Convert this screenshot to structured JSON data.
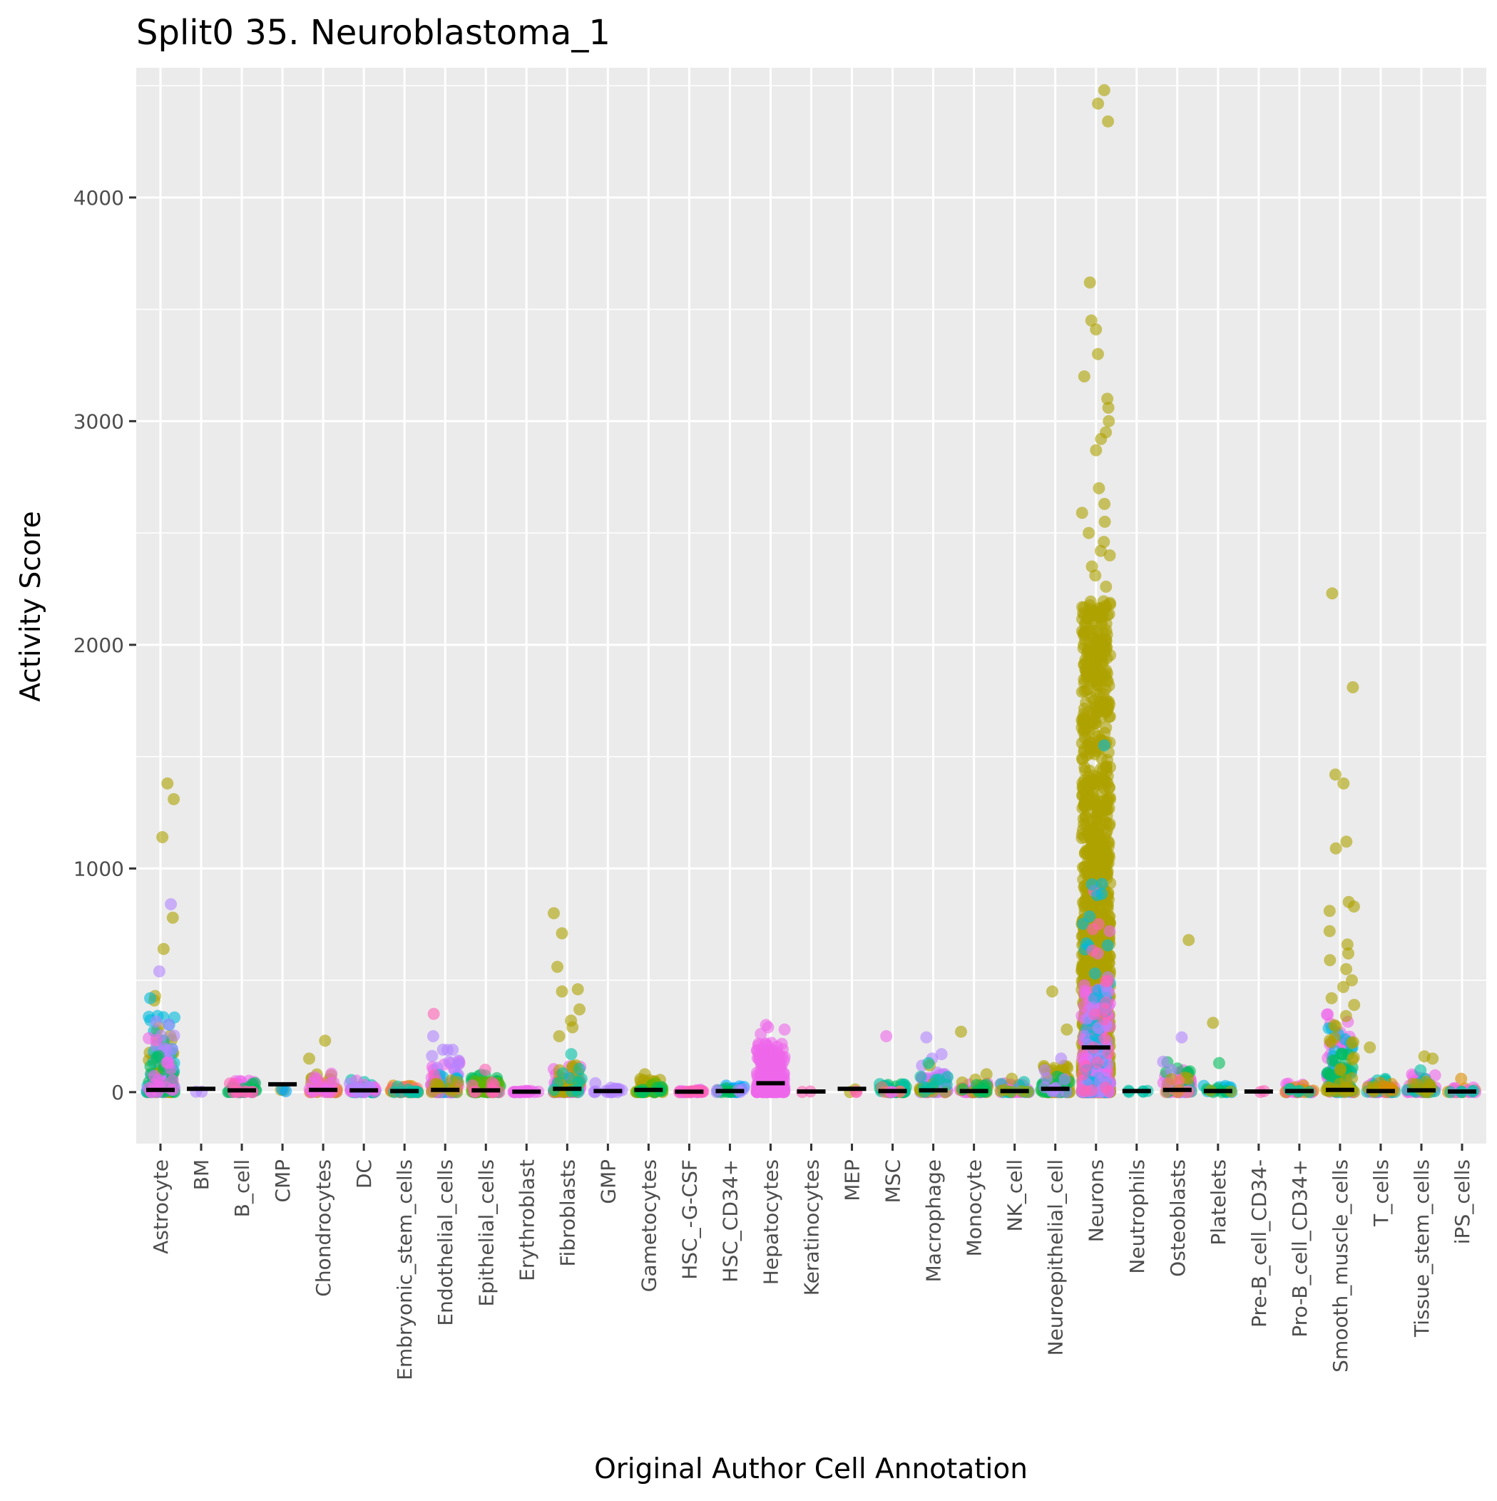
{
  "chart_data": {
    "type": "scatter",
    "title": "Split0 35. Neuroblastoma_1",
    "xlabel": "Original Author Cell Annotation",
    "ylabel": "Activity Score",
    "ylim": [
      -230,
      4580
    ],
    "yticks": [
      0,
      1000,
      2000,
      3000,
      4000
    ],
    "grid": true,
    "legend": "none",
    "panel_background": "#ebebeb",
    "grid_color": "#ffffff",
    "median_color": "#000000",
    "point_alpha": 0.6,
    "categories": [
      "Astrocyte",
      "BM",
      "B_cell",
      "CMP",
      "Chondrocytes",
      "DC",
      "Embryonic_stem_cells",
      "Endothelial_cells",
      "Epithelial_cells",
      "Erythroblast",
      "Fibroblasts",
      "GMP",
      "Gametocytes",
      "HSC_-G-CSF",
      "HSC_CD34+",
      "Hepatocytes",
      "Keratinocytes",
      "MEP",
      "MSC",
      "Macrophage",
      "Monocyte",
      "NK_cell",
      "Neuroepithelial_cell",
      "Neurons",
      "Neutrophils",
      "Osteoblasts",
      "Platelets",
      "Pre-B_cell_CD34-",
      "Pro-B_cell_CD34+",
      "Smooth_muscle_cells",
      "T_cells",
      "Tissue_stem_cells",
      "iPS_cells"
    ],
    "medians": [
      10,
      15,
      8,
      35,
      10,
      8,
      5,
      10,
      8,
      2,
      15,
      5,
      10,
      2,
      5,
      40,
      3,
      15,
      5,
      8,
      5,
      5,
      15,
      200,
      5,
      10,
      5,
      3,
      5,
      10,
      5,
      8,
      3
    ],
    "palette": [
      "#F8766D",
      "#DB8E00",
      "#AEA200",
      "#64B200",
      "#00BD5C",
      "#00C1A7",
      "#00BADE",
      "#00A6FF",
      "#B385FF",
      "#EF67EB",
      "#FF63B6"
    ],
    "groups": [
      {
        "cat": "Astrocyte",
        "color": "#AEA200",
        "n": 60,
        "max": 300,
        "outliers": [
          1380,
          1310,
          1140,
          780,
          640,
          430,
          410
        ]
      },
      {
        "cat": "Astrocyte",
        "color": "#00BADE",
        "n": 40,
        "max": 350,
        "outliers": [
          420
        ]
      },
      {
        "cat": "Astrocyte",
        "color": "#B385FF",
        "n": 30,
        "max": 320,
        "outliers": [
          840,
          540
        ]
      },
      {
        "cat": "Astrocyte",
        "color": "#00BD5C",
        "n": 30,
        "max": 200,
        "outliers": []
      },
      {
        "cat": "Astrocyte",
        "color": "#EF67EB",
        "n": 20,
        "max": 280,
        "outliers": []
      },
      {
        "cat": "BM",
        "color": "#B385FF",
        "n": 2,
        "max": 15,
        "outliers": []
      },
      {
        "cat": "B_cell",
        "color": "#EF67EB",
        "n": 25,
        "max": 60,
        "outliers": []
      },
      {
        "cat": "B_cell",
        "color": "#00BD5C",
        "n": 15,
        "max": 40,
        "outliers": []
      },
      {
        "cat": "B_cell",
        "color": "#FF63B6",
        "n": 10,
        "max": 55,
        "outliers": []
      },
      {
        "cat": "CMP",
        "color": "#AEA200",
        "n": 2,
        "max": 35,
        "outliers": []
      },
      {
        "cat": "CMP",
        "color": "#00A6FF",
        "n": 2,
        "max": 15,
        "outliers": []
      },
      {
        "cat": "Chondrocytes",
        "color": "#AEA200",
        "n": 25,
        "max": 80,
        "outliers": [
          230,
          150
        ]
      },
      {
        "cat": "Chondrocytes",
        "color": "#F8766D",
        "n": 15,
        "max": 50,
        "outliers": []
      },
      {
        "cat": "Chondrocytes",
        "color": "#EF67EB",
        "n": 15,
        "max": 95,
        "outliers": []
      },
      {
        "cat": "DC",
        "color": "#00C1A7",
        "n": 20,
        "max": 95,
        "outliers": []
      },
      {
        "cat": "DC",
        "color": "#EF67EB",
        "n": 15,
        "max": 90,
        "outliers": []
      },
      {
        "cat": "DC",
        "color": "#B385FF",
        "n": 10,
        "max": 60,
        "outliers": []
      },
      {
        "cat": "Embryonic_stem_cells",
        "color": "#DB8E00",
        "n": 25,
        "max": 30,
        "outliers": []
      },
      {
        "cat": "Embryonic_stem_cells",
        "color": "#F8766D",
        "n": 15,
        "max": 25,
        "outliers": []
      },
      {
        "cat": "Embryonic_stem_cells",
        "color": "#00C1A7",
        "n": 10,
        "max": 30,
        "outliers": []
      },
      {
        "cat": "Endothelial_cells",
        "color": "#EF67EB",
        "n": 40,
        "max": 150,
        "outliers": []
      },
      {
        "cat": "Endothelial_cells",
        "color": "#B385FF",
        "n": 30,
        "max": 200,
        "outliers": [
          250
        ]
      },
      {
        "cat": "Endothelial_cells",
        "color": "#00BADE",
        "n": 20,
        "max": 120,
        "outliers": []
      },
      {
        "cat": "Endothelial_cells",
        "color": "#FF63B6",
        "n": 10,
        "max": 100,
        "outliers": [
          350
        ]
      },
      {
        "cat": "Endothelial_cells",
        "color": "#AEA200",
        "n": 10,
        "max": 60,
        "outliers": []
      },
      {
        "cat": "Epithelial_cells",
        "color": "#00BD5C",
        "n": 50,
        "max": 80,
        "outliers": []
      },
      {
        "cat": "Epithelial_cells",
        "color": "#64B200",
        "n": 30,
        "max": 50,
        "outliers": []
      },
      {
        "cat": "Epithelial_cells",
        "color": "#FF63B6",
        "n": 10,
        "max": 60,
        "outliers": [
          100
        ]
      },
      {
        "cat": "Erythroblast",
        "color": "#EF67EB",
        "n": 20,
        "max": 8,
        "outliers": []
      },
      {
        "cat": "Fibroblasts",
        "color": "#EF67EB",
        "n": 40,
        "max": 120,
        "outliers": []
      },
      {
        "cat": "Fibroblasts",
        "color": "#AEA200",
        "n": 30,
        "max": 130,
        "outliers": [
          800,
          710,
          560,
          460,
          450,
          370,
          320,
          290,
          250
        ]
      },
      {
        "cat": "Fibroblasts",
        "color": "#00C1A7",
        "n": 10,
        "max": 120,
        "outliers": [
          170
        ]
      },
      {
        "cat": "GMP",
        "color": "#B385FF",
        "n": 20,
        "max": 20,
        "outliers": [
          40
        ]
      },
      {
        "cat": "Gametocytes",
        "color": "#AEA200",
        "n": 30,
        "max": 60,
        "outliers": [
          80
        ]
      },
      {
        "cat": "Gametocytes",
        "color": "#64B200",
        "n": 15,
        "max": 40,
        "outliers": []
      },
      {
        "cat": "Gametocytes",
        "color": "#00BD5C",
        "n": 10,
        "max": 30,
        "outliers": []
      },
      {
        "cat": "HSC_-G-CSF",
        "color": "#EF67EB",
        "n": 20,
        "max": 10,
        "outliers": []
      },
      {
        "cat": "HSC_-G-CSF",
        "color": "#FF63B6",
        "n": 10,
        "max": 8,
        "outliers": []
      },
      {
        "cat": "HSC_CD34+",
        "color": "#00A6FF",
        "n": 20,
        "max": 30,
        "outliers": []
      },
      {
        "cat": "HSC_CD34+",
        "color": "#00BD5C",
        "n": 10,
        "max": 35,
        "outliers": []
      },
      {
        "cat": "HSC_CD34+",
        "color": "#B385FF",
        "n": 5,
        "max": 20,
        "outliers": []
      },
      {
        "cat": "Hepatocytes",
        "color": "#EF67EB",
        "n": 260,
        "max": 220,
        "outliers": [
          300,
          290,
          280,
          260
        ]
      },
      {
        "cat": "Keratinocytes",
        "color": "#FF63B6",
        "n": 2,
        "max": 5,
        "outliers": []
      },
      {
        "cat": "MEP",
        "color": "#AEA200",
        "n": 2,
        "max": 15,
        "outliers": []
      },
      {
        "cat": "MEP",
        "color": "#FF63B6",
        "n": 2,
        "max": 5,
        "outliers": []
      },
      {
        "cat": "MSC",
        "color": "#00BD5C",
        "n": 30,
        "max": 35,
        "outliers": []
      },
      {
        "cat": "MSC",
        "color": "#00C1A7",
        "n": 15,
        "max": 40,
        "outliers": []
      },
      {
        "cat": "MSC",
        "color": "#F8766D",
        "n": 5,
        "max": 40,
        "outliers": []
      },
      {
        "cat": "MSC",
        "color": "#EF67EB",
        "n": 2,
        "max": 10,
        "outliers": [
          250
        ]
      },
      {
        "cat": "Macrophage",
        "color": "#EF67EB",
        "n": 40,
        "max": 80,
        "outliers": []
      },
      {
        "cat": "Macrophage",
        "color": "#B385FF",
        "n": 20,
        "max": 120,
        "outliers": [
          245,
          170,
          150
        ]
      },
      {
        "cat": "Macrophage",
        "color": "#AEA200",
        "n": 10,
        "max": 60,
        "outliers": [
          120
        ]
      },
      {
        "cat": "Macrophage",
        "color": "#00C1A7",
        "n": 10,
        "max": 80,
        "outliers": [
          130
        ]
      },
      {
        "cat": "Monocyte",
        "color": "#EF67EB",
        "n": 30,
        "max": 40,
        "outliers": []
      },
      {
        "cat": "Monocyte",
        "color": "#AEA200",
        "n": 10,
        "max": 60,
        "outliers": [
          270,
          80
        ]
      },
      {
        "cat": "Monocyte",
        "color": "#00BD5C",
        "n": 10,
        "max": 40,
        "outliers": []
      },
      {
        "cat": "NK_cell",
        "color": "#EF67EB",
        "n": 30,
        "max": 40,
        "outliers": []
      },
      {
        "cat": "NK_cell",
        "color": "#00C1A7",
        "n": 10,
        "max": 50,
        "outliers": []
      },
      {
        "cat": "NK_cell",
        "color": "#AEA200",
        "n": 5,
        "max": 40,
        "outliers": [
          60
        ]
      },
      {
        "cat": "Neuroepithelial_cell",
        "color": "#AEA200",
        "n": 70,
        "max": 120,
        "outliers": [
          450,
          280
        ]
      },
      {
        "cat": "Neuroepithelial_cell",
        "color": "#00BD5C",
        "n": 30,
        "max": 100,
        "outliers": []
      },
      {
        "cat": "Neuroepithelial_cell",
        "color": "#B385FF",
        "n": 10,
        "max": 100,
        "outliers": [
          150
        ]
      },
      {
        "cat": "Neurons",
        "color": "#AEA200",
        "n": 1500,
        "max": 2200,
        "outliers": [
          4480,
          4420,
          4340,
          3620,
          3450,
          3410,
          3300,
          3200,
          3100,
          3060,
          3000,
          2950,
          2920,
          2870,
          2700,
          2630,
          2590,
          2550,
          2500,
          2460,
          2420,
          2400,
          2350,
          2310,
          2260
        ]
      },
      {
        "cat": "Neurons",
        "color": "#EF67EB",
        "n": 180,
        "max": 500,
        "outliers": [
          900,
          720,
          620
        ]
      },
      {
        "cat": "Neurons",
        "color": "#00BADE",
        "n": 50,
        "max": 1000,
        "outliers": [
          1550
        ]
      },
      {
        "cat": "Neurons",
        "color": "#B385FF",
        "n": 30,
        "max": 600,
        "outliers": []
      },
      {
        "cat": "Neurons",
        "color": "#FF63B6",
        "n": 20,
        "max": 800,
        "outliers": []
      },
      {
        "cat": "Neutrophils",
        "color": "#00C1A7",
        "n": 5,
        "max": 8,
        "outliers": []
      },
      {
        "cat": "Osteoblasts",
        "color": "#EF67EB",
        "n": 30,
        "max": 100,
        "outliers": []
      },
      {
        "cat": "Osteoblasts",
        "color": "#00BD5C",
        "n": 15,
        "max": 170,
        "outliers": []
      },
      {
        "cat": "Osteoblasts",
        "color": "#B385FF",
        "n": 10,
        "max": 180,
        "outliers": [
          245
        ]
      },
      {
        "cat": "Osteoblasts",
        "color": "#AEA200",
        "n": 5,
        "max": 80,
        "outliers": [
          680
        ]
      },
      {
        "cat": "Osteoblasts",
        "color": "#F8766D",
        "n": 5,
        "max": 60,
        "outliers": []
      },
      {
        "cat": "Platelets",
        "color": "#00BADE",
        "n": 15,
        "max": 30,
        "outliers": []
      },
      {
        "cat": "Platelets",
        "color": "#00BD5C",
        "n": 5,
        "max": 20,
        "outliers": [
          130
        ]
      },
      {
        "cat": "Platelets",
        "color": "#AEA200",
        "n": 2,
        "max": 10,
        "outliers": [
          310
        ]
      },
      {
        "cat": "Pre-B_cell_CD34-",
        "color": "#FF63B6",
        "n": 2,
        "max": 5,
        "outliers": []
      },
      {
        "cat": "Pro-B_cell_CD34+",
        "color": "#EF67EB",
        "n": 25,
        "max": 40,
        "outliers": []
      },
      {
        "cat": "Pro-B_cell_CD34+",
        "color": "#DB8E00",
        "n": 10,
        "max": 30,
        "outliers": []
      },
      {
        "cat": "Pro-B_cell_CD34+",
        "color": "#00C1A7",
        "n": 5,
        "max": 20,
        "outliers": []
      },
      {
        "cat": "Smooth_muscle_cells",
        "color": "#EF67EB",
        "n": 50,
        "max": 350,
        "outliers": []
      },
      {
        "cat": "Smooth_muscle_cells",
        "color": "#00BADE",
        "n": 30,
        "max": 300,
        "outliers": []
      },
      {
        "cat": "Smooth_muscle_cells",
        "color": "#00BD5C",
        "n": 20,
        "max": 200,
        "outliers": []
      },
      {
        "cat": "Smooth_muscle_cells",
        "color": "#AEA200",
        "n": 30,
        "max": 350,
        "outliers": [
          2230,
          1810,
          1420,
          1380,
          1120,
          1090,
          850,
          830,
          810,
          720,
          660,
          620,
          590,
          550,
          500,
          470,
          420,
          390
        ]
      },
      {
        "cat": "T_cells",
        "color": "#EF67EB",
        "n": 30,
        "max": 40,
        "outliers": []
      },
      {
        "cat": "T_cells",
        "color": "#00C1A7",
        "n": 15,
        "max": 80,
        "outliers": []
      },
      {
        "cat": "T_cells",
        "color": "#DB8E00",
        "n": 10,
        "max": 50,
        "outliers": []
      },
      {
        "cat": "T_cells",
        "color": "#AEA200",
        "n": 3,
        "max": 30,
        "outliers": [
          200
        ]
      },
      {
        "cat": "Tissue_stem_cells",
        "color": "#EF67EB",
        "n": 30,
        "max": 80,
        "outliers": []
      },
      {
        "cat": "Tissue_stem_cells",
        "color": "#00C1A7",
        "n": 15,
        "max": 100,
        "outliers": []
      },
      {
        "cat": "Tissue_stem_cells",
        "color": "#AEA200",
        "n": 10,
        "max": 60,
        "outliers": [
          160,
          150
        ]
      },
      {
        "cat": "iPS_cells",
        "color": "#DB8E00",
        "n": 15,
        "max": 20,
        "outliers": [
          60
        ]
      },
      {
        "cat": "iPS_cells",
        "color": "#EF67EB",
        "n": 10,
        "max": 30,
        "outliers": []
      },
      {
        "cat": "iPS_cells",
        "color": "#00C1A7",
        "n": 5,
        "max": 15,
        "outliers": []
      }
    ]
  }
}
